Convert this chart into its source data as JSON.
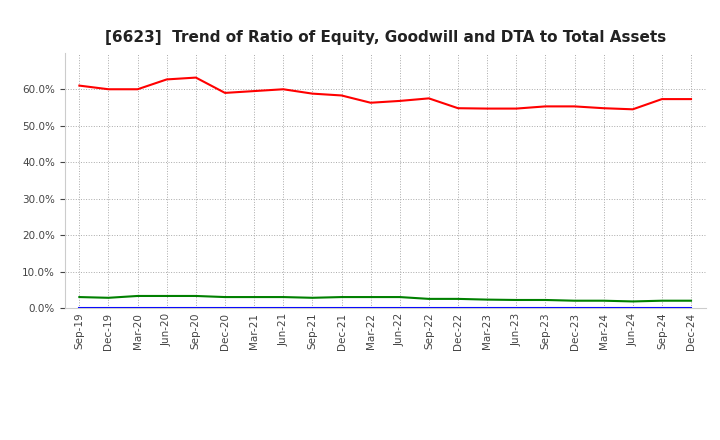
{
  "title": "[6623]  Trend of Ratio of Equity, Goodwill and DTA to Total Assets",
  "x_labels": [
    "Sep-19",
    "Dec-19",
    "Mar-20",
    "Jun-20",
    "Sep-20",
    "Dec-20",
    "Mar-21",
    "Jun-21",
    "Sep-21",
    "Dec-21",
    "Mar-22",
    "Jun-22",
    "Sep-22",
    "Dec-22",
    "Mar-23",
    "Jun-23",
    "Sep-23",
    "Dec-23",
    "Mar-24",
    "Jun-24",
    "Sep-24",
    "Dec-24"
  ],
  "equity": [
    0.61,
    0.6,
    0.6,
    0.627,
    0.632,
    0.59,
    0.595,
    0.6,
    0.588,
    0.583,
    0.563,
    0.568,
    0.575,
    0.548,
    0.547,
    0.547,
    0.553,
    0.553,
    0.548,
    0.545,
    0.573,
    0.573
  ],
  "goodwill": [
    0.0,
    0.0,
    0.0,
    0.0,
    0.0,
    0.0,
    0.0,
    0.0,
    0.0,
    0.0,
    0.0,
    0.0,
    0.0,
    0.0,
    0.0,
    0.0,
    0.0,
    0.0,
    0.0,
    0.0,
    0.0,
    0.0
  ],
  "dta": [
    0.03,
    0.028,
    0.033,
    0.033,
    0.033,
    0.03,
    0.03,
    0.03,
    0.028,
    0.03,
    0.03,
    0.03,
    0.025,
    0.025,
    0.023,
    0.022,
    0.022,
    0.02,
    0.02,
    0.018,
    0.02,
    0.02
  ],
  "equity_color": "#ff0000",
  "goodwill_color": "#0000ff",
  "dta_color": "#008000",
  "ylim": [
    0.0,
    0.7
  ],
  "yticks": [
    0.0,
    0.1,
    0.2,
    0.3,
    0.4,
    0.5,
    0.6
  ],
  "background_color": "#ffffff",
  "plot_bg_color": "#ffffff",
  "grid_color": "#aaaaaa",
  "title_fontsize": 11,
  "tick_fontsize": 7.5,
  "legend_fontsize": 9
}
